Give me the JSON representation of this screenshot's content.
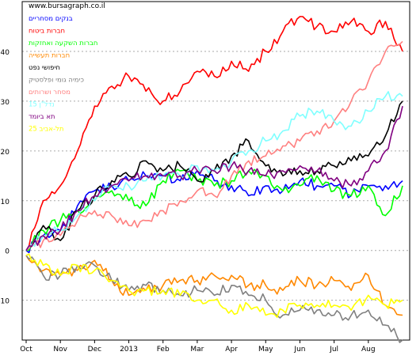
{
  "watermark": "www.bursagraph.co.il",
  "chart_data": {
    "type": "line",
    "title": "",
    "xlabel": "",
    "ylabel": "",
    "ylim": [
      -18,
      50
    ],
    "yticks": [
      -10,
      0,
      10,
      20,
      30,
      40
    ],
    "grid": "horizontal dashed",
    "legend_position": "top-left",
    "x_tick_labels": [
      "Oct",
      "Nov",
      "Dec",
      "2013",
      "Feb",
      "Mar",
      "Apr",
      "May",
      "Jun",
      "Jul",
      "Aug"
    ],
    "x": [
      "Oct 1",
      "Oct 15",
      "Nov 1",
      "Nov 15",
      "Dec 1",
      "Dec 15",
      "Jan 1",
      "Jan 15",
      "Feb 1",
      "Feb 15",
      "Mar 1",
      "Mar 15",
      "Apr 1",
      "Apr 15",
      "May 1",
      "May 15",
      "Jun 1",
      "Jun 15",
      "Jul 1",
      "Jul 15",
      "Aug 1",
      "Aug 15",
      "Aug 30"
    ],
    "series": [
      {
        "name": "בנקים מסחריים",
        "color": "#0000ff",
        "values": [
          0,
          3,
          4,
          9,
          12,
          13,
          14,
          15,
          15,
          14,
          16,
          14,
          13,
          11,
          13,
          12,
          14,
          13,
          13,
          11,
          13,
          13,
          14
        ]
      },
      {
        "name": "חברות ביטוח",
        "color": "#ff0000",
        "values": [
          0,
          10,
          13,
          20,
          29,
          33,
          35,
          32,
          30,
          32,
          36,
          35,
          38,
          36,
          40,
          44,
          47,
          45,
          44,
          46,
          44,
          46,
          40
        ]
      },
      {
        "name": "חברות השקעה ואחזקות",
        "color": "#00ff00",
        "values": [
          0,
          4,
          6,
          8,
          10,
          12,
          10,
          9,
          14,
          16,
          14,
          13,
          14,
          16,
          15,
          12,
          13,
          15,
          12,
          11,
          13,
          7,
          13
        ]
      },
      {
        "name": "חברות תעשייה",
        "color": "#ff8800",
        "values": [
          -1,
          -4,
          -5,
          -4,
          -2,
          -6,
          -9,
          -8,
          -7,
          -6,
          -6,
          -5,
          -5,
          -7,
          -7,
          -8,
          -6,
          -7,
          -6,
          -8,
          -5,
          -11,
          -13
        ]
      },
      {
        "name": "חיפושי נפט",
        "color": "#000000",
        "values": [
          0,
          5,
          2,
          8,
          11,
          14,
          15,
          18,
          16,
          17,
          14,
          16,
          19,
          22,
          17,
          15,
          16,
          16,
          17,
          18,
          19,
          23,
          30
        ]
      },
      {
        "name": "כימיה גומי ופלסטיק",
        "color": "#808080",
        "values": [
          -1,
          -5,
          -5,
          -3,
          -3,
          -6,
          -8,
          -7,
          -8,
          -9,
          -8,
          -9,
          -7,
          -9,
          -10,
          -13,
          -12,
          -12,
          -13,
          -13,
          -12,
          -15,
          -18
        ]
      },
      {
        "name": "מסחר ושרותים",
        "color": "#ff8080",
        "values": [
          0,
          2,
          3,
          6,
          8,
          7,
          5,
          6,
          8,
          10,
          12,
          11,
          15,
          18,
          19,
          21,
          22,
          24,
          26,
          30,
          34,
          40,
          42
        ]
      },
      {
        "name": "נדל\"ן 15",
        "color": "#80ffff",
        "values": [
          0,
          3,
          4,
          7,
          10,
          13,
          13,
          14,
          15,
          15,
          17,
          16,
          18,
          20,
          22,
          24,
          27,
          28,
          26,
          25,
          28,
          31,
          31
        ]
      },
      {
        "name": "תא ביומד",
        "color": "#800080",
        "values": [
          0,
          3,
          4,
          8,
          11,
          13,
          14,
          15,
          15,
          15,
          16,
          16,
          17,
          16,
          15,
          16,
          17,
          16,
          14,
          13,
          16,
          20,
          29
        ]
      },
      {
        "name": "תל-אביב 25",
        "color": "#ffff00",
        "values": [
          -1,
          -3,
          -5,
          -3,
          -4,
          -6,
          -8,
          -8,
          -8,
          -9,
          -10,
          -10,
          -12,
          -11,
          -13,
          -12,
          -11,
          -11,
          -11,
          -12,
          -9,
          -11,
          -10
        ]
      }
    ]
  }
}
